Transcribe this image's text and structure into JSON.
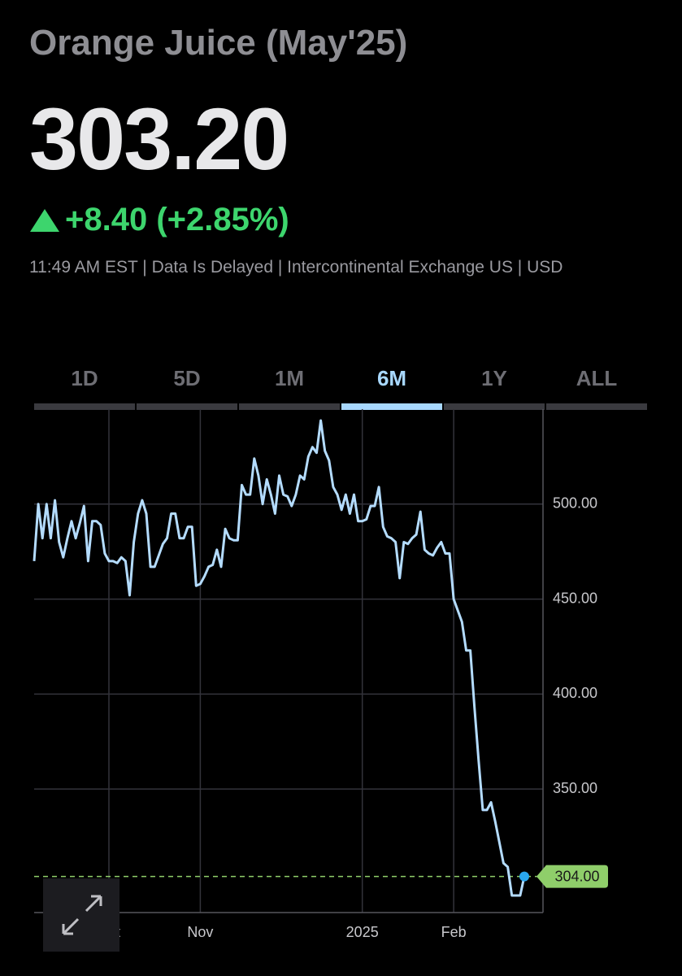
{
  "header": {
    "title": "Orange Juice (May'25)",
    "price": "303.20",
    "change": "+8.40 (+2.85%)",
    "info": "11:49 AM EST | Data Is Delayed | Intercontinental Exchange US | USD"
  },
  "tabs": {
    "items": [
      "1D",
      "5D",
      "1M",
      "6M",
      "1Y",
      "ALL"
    ],
    "active": 3
  },
  "chart_data": {
    "type": "line",
    "categories": [
      null,
      null,
      null,
      null,
      null,
      null,
      null,
      null,
      null,
      null,
      null,
      null,
      null,
      null,
      null,
      null,
      null,
      null,
      "Oct",
      null,
      null,
      null,
      null,
      null,
      null,
      null,
      null,
      null,
      null,
      null,
      null,
      null,
      null,
      null,
      null,
      null,
      null,
      null,
      null,
      null,
      "Nov",
      null,
      null,
      null,
      null,
      null,
      null,
      null,
      null,
      null,
      null,
      null,
      null,
      null,
      null,
      null,
      null,
      null,
      null,
      null,
      null,
      null,
      null,
      null,
      null,
      null,
      null,
      null,
      null,
      null,
      null,
      null,
      null,
      null,
      null,
      null,
      null,
      null,
      null,
      "2025",
      null,
      null,
      null,
      null,
      null,
      null,
      null,
      null,
      null,
      null,
      null,
      null,
      null,
      null,
      null,
      null,
      null,
      null,
      null,
      null,
      null,
      "Feb",
      null,
      null,
      null,
      null,
      null,
      null,
      null,
      null,
      null,
      null,
      null,
      null,
      null,
      null,
      null,
      null,
      null
    ],
    "series": [
      {
        "color": "#b4dcff",
        "values": [
          470,
          500,
          482,
          500,
          482,
          502,
          480,
          472,
          482,
          491,
          482,
          490,
          499,
          470,
          491,
          491,
          489,
          474,
          470,
          470,
          469,
          472,
          470,
          452,
          480,
          495,
          502,
          495,
          467,
          467,
          473,
          479,
          482,
          495,
          495,
          482,
          482,
          488,
          488,
          457,
          458,
          462,
          467,
          468,
          476,
          467,
          487,
          482,
          481,
          481,
          510,
          505,
          505,
          524,
          515,
          500,
          513,
          505,
          495,
          515,
          505,
          504,
          499,
          505,
          515,
          513,
          525,
          530,
          527,
          544,
          528,
          523,
          509,
          505,
          497,
          505,
          495,
          505,
          491,
          491,
          492,
          499,
          499,
          509,
          488,
          483,
          482,
          480,
          461,
          480,
          479,
          482,
          484,
          496,
          476,
          474,
          473,
          477,
          480,
          474,
          474,
          450,
          444,
          438,
          423,
          423,
          393,
          365,
          339,
          339,
          343,
          333,
          322,
          311,
          309,
          294,
          294,
          294,
          304
        ]
      }
    ],
    "ylim": [
      285,
      550
    ],
    "yticks": [
      {
        "value": 350,
        "label": "350.00"
      },
      {
        "value": 400,
        "label": "400.00"
      },
      {
        "value": 450,
        "label": "450.00"
      },
      {
        "value": 500,
        "label": "500.00"
      }
    ],
    "reference_line": {
      "value": 304,
      "label": "304.00",
      "color": "#8fce6a"
    },
    "grid": true
  }
}
